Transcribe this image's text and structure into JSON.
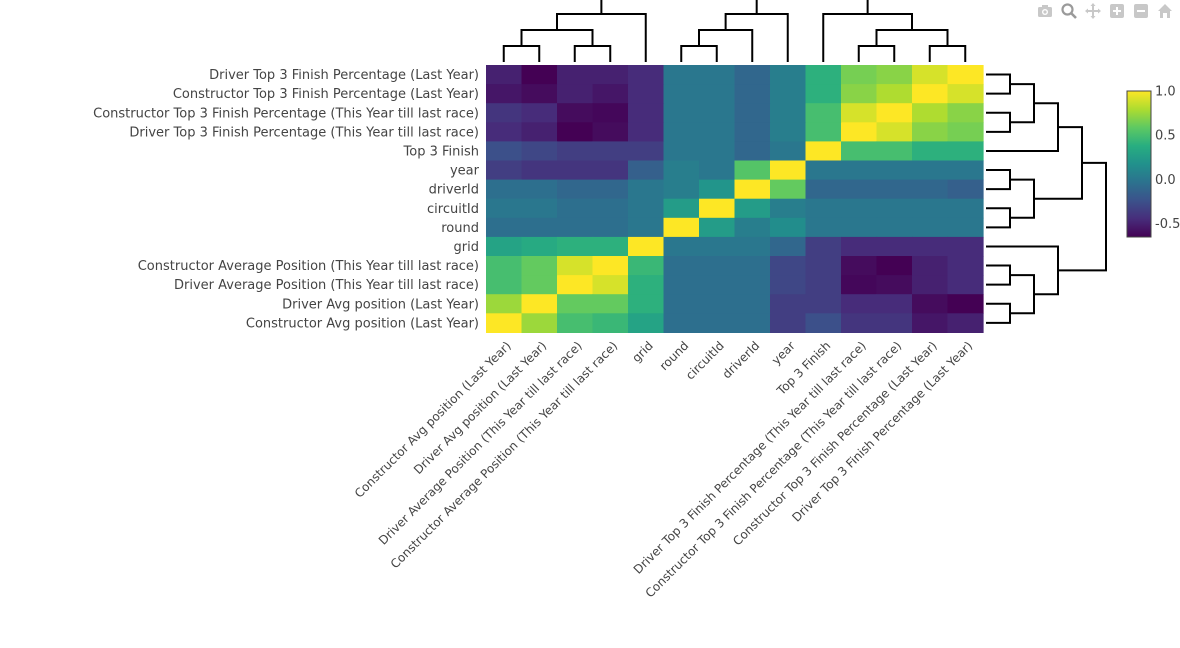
{
  "modebar": {
    "icons": [
      "camera-icon",
      "zoom-icon",
      "pan-icon",
      "zoom-in-icon",
      "zoom-out-icon",
      "home-icon"
    ]
  },
  "chart_data": {
    "type": "heatmap",
    "title": "",
    "colorscale": "viridis",
    "zlim": [
      -0.65,
      1.0
    ],
    "colorbar_ticks": [
      "1.0",
      "0.5",
      "0.0",
      "-0.5"
    ],
    "colorbar_tick_values": [
      1.0,
      0.5,
      0.0,
      -0.5
    ],
    "rows": [
      "Driver Top 3 Finish Percentage (Last Year)",
      "Constructor Top 3 Finish Percentage (Last Year)",
      "Constructor Top 3 Finish Percentage (This Year till last race)",
      "Driver Top 3 Finish Percentage (This Year till last race)",
      "Top 3 Finish",
      "year",
      "driverId",
      "circuitId",
      "round",
      "grid",
      "Constructor Average Position (This Year till last race)",
      "Driver Average Position (This Year till last race)",
      "Driver Avg position (Last Year)",
      "Constructor Avg position (Last Year)"
    ],
    "columns": [
      "Constructor Avg position (Last Year)",
      "Driver Avg position (Last Year)",
      "Driver Average Position (This Year till last race)",
      "Constructor Average Position (This Year till last race)",
      "grid",
      "round",
      "circuitId",
      "driverId",
      "year",
      "Top 3 Finish",
      "Driver Top 3 Finish Percentage (This Year till last race)",
      "Constructor Top 3 Finish Percentage (This Year till last race)",
      "Constructor Top 3 Finish Percentage (Last Year)",
      "Driver Top 3 Finish Percentage (Last Year)"
    ],
    "z": [
      [
        -0.5,
        -0.65,
        -0.5,
        -0.5,
        -0.45,
        0.0,
        0.0,
        -0.1,
        0.05,
        0.4,
        0.65,
        0.7,
        0.9,
        1.0
      ],
      [
        -0.55,
        -0.6,
        -0.5,
        -0.55,
        -0.45,
        0.0,
        0.0,
        -0.1,
        0.05,
        0.4,
        0.7,
        0.8,
        1.0,
        0.9
      ],
      [
        -0.4,
        -0.45,
        -0.6,
        -0.62,
        -0.45,
        0.0,
        0.0,
        -0.1,
        0.05,
        0.5,
        0.9,
        1.0,
        0.8,
        0.7
      ],
      [
        -0.45,
        -0.5,
        -0.65,
        -0.6,
        -0.45,
        0.0,
        0.0,
        -0.1,
        0.05,
        0.5,
        1.0,
        0.9,
        0.7,
        0.65
      ],
      [
        -0.25,
        -0.3,
        -0.35,
        -0.35,
        -0.35,
        0.0,
        0.0,
        -0.1,
        0.0,
        1.0,
        0.5,
        0.5,
        0.4,
        0.4
      ],
      [
        -0.35,
        -0.4,
        -0.4,
        -0.4,
        -0.15,
        0.05,
        0.0,
        0.55,
        1.0,
        0.0,
        0.0,
        0.0,
        0.0,
        0.0
      ],
      [
        -0.05,
        -0.05,
        -0.1,
        -0.1,
        0.0,
        0.05,
        0.2,
        1.0,
        0.6,
        -0.1,
        -0.1,
        -0.1,
        -0.1,
        -0.15
      ],
      [
        0.0,
        0.0,
        -0.05,
        -0.05,
        0.0,
        0.25,
        1.0,
        0.25,
        0.05,
        0.0,
        0.0,
        0.0,
        0.0,
        0.0
      ],
      [
        -0.05,
        -0.05,
        -0.05,
        -0.05,
        0.0,
        1.0,
        0.25,
        0.05,
        0.15,
        0.0,
        0.0,
        0.0,
        0.0,
        0.0
      ],
      [
        0.3,
        0.35,
        0.4,
        0.4,
        1.0,
        0.0,
        0.0,
        0.0,
        -0.1,
        -0.35,
        -0.45,
        -0.45,
        -0.45,
        -0.45
      ],
      [
        0.5,
        0.6,
        0.9,
        1.0,
        0.45,
        -0.05,
        -0.05,
        -0.05,
        -0.3,
        -0.35,
        -0.6,
        -0.65,
        -0.5,
        -0.45
      ],
      [
        0.5,
        0.6,
        1.0,
        0.9,
        0.4,
        -0.05,
        -0.05,
        -0.05,
        -0.3,
        -0.35,
        -0.62,
        -0.6,
        -0.5,
        -0.45
      ],
      [
        0.75,
        1.0,
        0.6,
        0.6,
        0.4,
        -0.05,
        -0.05,
        -0.05,
        -0.35,
        -0.35,
        -0.45,
        -0.45,
        -0.6,
        -0.65
      ],
      [
        1.0,
        0.75,
        0.5,
        0.45,
        0.3,
        -0.05,
        -0.05,
        -0.05,
        -0.35,
        -0.25,
        -0.4,
        -0.4,
        -0.55,
        -0.5
      ]
    ],
    "top_dendrogram": [
      [
        0,
        1,
        0
      ],
      [
        2,
        3,
        0
      ],
      [
        0.5,
        2.5,
        1
      ],
      [
        4,
        1.5,
        2
      ],
      [
        5,
        6,
        0
      ],
      [
        7,
        5.5,
        1
      ],
      [
        8,
        6.25,
        2
      ],
      [
        10,
        11,
        0
      ],
      [
        12,
        13,
        0
      ],
      [
        10.5,
        12.5,
        1
      ],
      [
        9,
        11.5,
        2
      ],
      [
        7.125,
        10.25,
        3
      ],
      [
        2.75,
        8.6875,
        4
      ]
    ],
    "right_dendrogram": [
      [
        0,
        1,
        0
      ],
      [
        2,
        3,
        0
      ],
      [
        0.5,
        2.5,
        1
      ],
      [
        4,
        1.5,
        2
      ],
      [
        5,
        6,
        0
      ],
      [
        7,
        8,
        0
      ],
      [
        5.5,
        7.5,
        1
      ],
      [
        2.75,
        6.5,
        3
      ],
      [
        10,
        11,
        0
      ],
      [
        12,
        13,
        0
      ],
      [
        10.5,
        12.5,
        1
      ],
      [
        9,
        11.5,
        2
      ],
      [
        4.625,
        10.25,
        4
      ]
    ]
  }
}
